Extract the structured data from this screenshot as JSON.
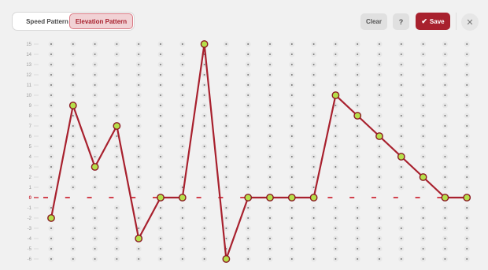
{
  "toolbar": {
    "speed_label": "Speed Pattern",
    "elevation_label": "Elevation Pattern",
    "active_mode": "Elevation Pattern",
    "clear_label": "Clear",
    "help_label": "?",
    "save_label": "Save",
    "save_icon": "check-icon",
    "close_icon": "close-icon"
  },
  "grid": {
    "y_min": -6,
    "y_max": 15,
    "y_labels": [
      "15",
      "14",
      "13",
      "12",
      "11",
      "10",
      "9",
      "8",
      "7",
      "6",
      "5",
      "4",
      "3",
      "2",
      "1",
      "0",
      "-1",
      "-2",
      "-3",
      "-4",
      "-5",
      "-6"
    ],
    "columns": 20,
    "colors": {
      "line": "#a8212e",
      "point_fill": "#b6e04a",
      "point_stroke": "#8a1a22",
      "baseline": "#d2414d",
      "cell_dot_bg": "#e7e7e7",
      "cell_dot": "#777777"
    }
  },
  "pattern": {
    "values": [
      -2,
      9,
      3,
      7,
      -4,
      0,
      0,
      15,
      -6,
      0,
      0,
      0,
      0,
      10,
      8,
      6,
      4,
      2,
      0,
      0
    ]
  }
}
